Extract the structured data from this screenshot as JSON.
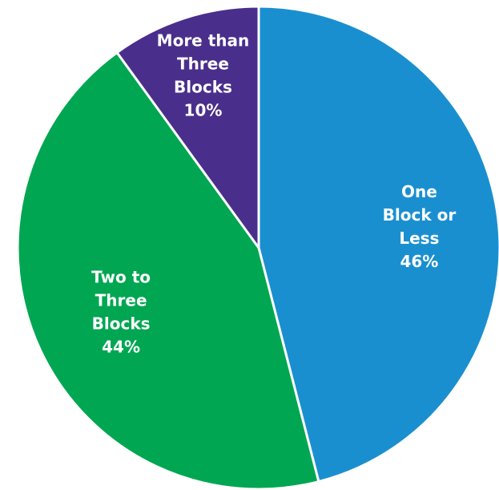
{
  "chart_data": {
    "type": "pie",
    "start_angle_deg": 0,
    "direction": "clockwise",
    "slices": [
      {
        "name": "One Block or Less",
        "label_lines": [
          "One",
          "Block or",
          "Less"
        ],
        "value": 46,
        "value_label": "46%",
        "color": "#1A8FD0"
      },
      {
        "name": "Two to Three Blocks",
        "label_lines": [
          "Two to",
          "Three",
          "Blocks"
        ],
        "value": 44,
        "value_label": "44%",
        "color": "#00A651"
      },
      {
        "name": "More than Three Blocks",
        "label_lines": [
          "More than",
          "Three",
          "Blocks"
        ],
        "value": 10,
        "value_label": "10%",
        "color": "#4A2E8C"
      }
    ]
  }
}
